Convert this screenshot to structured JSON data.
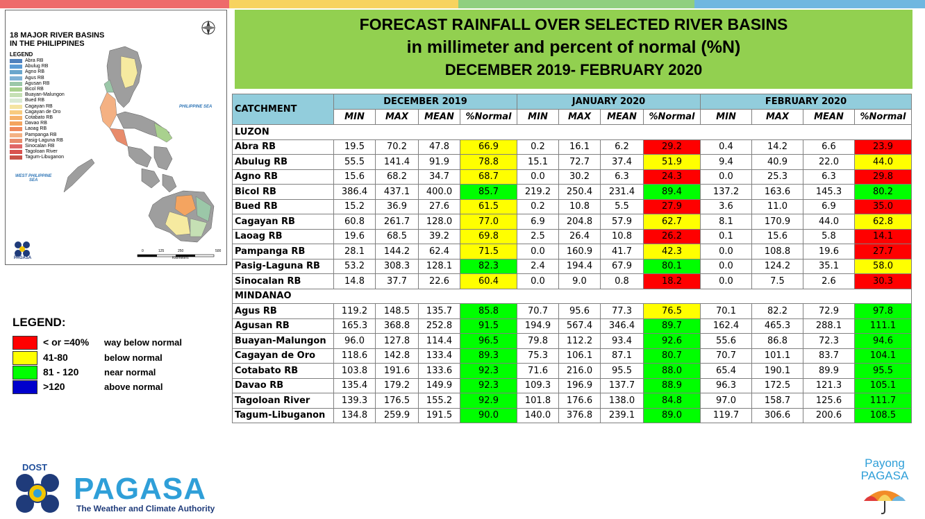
{
  "colors": {
    "red": "#ff0000",
    "yellow": "#ffff00",
    "green": "#00ff00",
    "blue": "#0000cc",
    "header": "#92cddc",
    "banner": "#92d050"
  },
  "banner": {
    "line1": "FORECAST RAINFALL OVER SELECTED RIVER BASINS",
    "line2": "in millimeter  and percent of normal (%N)",
    "line3": "DECEMBER 2019- FEBRUARY 2020"
  },
  "map": {
    "title_line1": "18 MAJOR RIVER BASINS",
    "title_line2": "IN THE PHILIPPINES",
    "legend_title": "LEGEND",
    "basins": [
      {
        "name": "Abra RB",
        "color": "#4f81bd"
      },
      {
        "name": "Abulug RB",
        "color": "#5b9bd5"
      },
      {
        "name": "Agno RB",
        "color": "#6aa6cc"
      },
      {
        "name": "Agus RB",
        "color": "#7fb2d6"
      },
      {
        "name": "Agusan RB",
        "color": "#9bc7a8"
      },
      {
        "name": "Bicol RB",
        "color": "#a9d18e"
      },
      {
        "name": "Buayan-Malungon",
        "color": "#c5e0b4"
      },
      {
        "name": "Bued RB",
        "color": "#d9ead3"
      },
      {
        "name": "Cagayan RB",
        "color": "#f4e4a1"
      },
      {
        "name": "Cagayan de Oro",
        "color": "#f8cb7f"
      },
      {
        "name": "Cotabato RB",
        "color": "#f6b26b"
      },
      {
        "name": "Davao RB",
        "color": "#f4a460"
      },
      {
        "name": "Laoag RB",
        "color": "#f08a5d"
      },
      {
        "name": "Pampanga RB",
        "color": "#f4b183"
      },
      {
        "name": "Pasig-Laguna RB",
        "color": "#e88b6b"
      },
      {
        "name": "Sinocalan RB",
        "color": "#e06666"
      },
      {
        "name": "Tagoloan River",
        "color": "#d9534f"
      },
      {
        "name": "Tagum-Libuganon",
        "color": "#c9544a"
      }
    ],
    "sea_east": "PHILIPPINE SEA",
    "sea_west_1": "WEST PHILIPPINE",
    "sea_west_2": "SEA",
    "scale_labels": [
      "0",
      "125",
      "250",
      "500"
    ],
    "scale_unit": "Kilometers",
    "logo_text": "PAGASA"
  },
  "table": {
    "catchment_label": "CATCHMENT",
    "months": [
      "DECEMBER 2019",
      "JANUARY 2020",
      "FEBRUARY 2020"
    ],
    "subheaders": [
      "MIN",
      "MAX",
      "MEAN",
      "%Normal"
    ],
    "regions": [
      {
        "name": "LUZON",
        "rows": [
          {
            "name": "Abra RB",
            "vals": [
              "19.5",
              "70.2",
              "47.8",
              "66.9",
              "0.2",
              "16.1",
              "6.2",
              "29.2",
              "0.4",
              "14.2",
              "6.6",
              "23.9"
            ],
            "cls": [
              "yellow",
              "red",
              "red"
            ]
          },
          {
            "name": "Abulug RB",
            "vals": [
              "55.5",
              "141.4",
              "91.9",
              "78.8",
              "15.1",
              "72.7",
              "37.4",
              "51.9",
              "9.4",
              "40.9",
              "22.0",
              "44.0"
            ],
            "cls": [
              "yellow",
              "yellow",
              "yellow"
            ]
          },
          {
            "name": "Agno RB",
            "vals": [
              "15.6",
              "68.2",
              "34.7",
              "68.7",
              "0.0",
              "30.2",
              "6.3",
              "24.3",
              "0.0",
              "25.3",
              "6.3",
              "29.8"
            ],
            "cls": [
              "yellow",
              "red",
              "red"
            ]
          },
          {
            "name": "Bicol RB",
            "vals": [
              "386.4",
              "437.1",
              "400.0",
              "85.7",
              "219.2",
              "250.4",
              "231.4",
              "89.4",
              "137.2",
              "163.6",
              "145.3",
              "80.2"
            ],
            "cls": [
              "green",
              "green",
              "green"
            ]
          },
          {
            "name": "Bued RB",
            "vals": [
              "15.2",
              "36.9",
              "27.6",
              "61.5",
              "0.2",
              "10.8",
              "5.5",
              "27.9",
              "3.6",
              "11.0",
              "6.9",
              "35.0"
            ],
            "cls": [
              "yellow",
              "red",
              "red"
            ]
          },
          {
            "name": "Cagayan RB",
            "vals": [
              "60.8",
              "261.7",
              "128.0",
              "77.0",
              "6.9",
              "204.8",
              "57.9",
              "62.7",
              "8.1",
              "170.9",
              "44.0",
              "62.8"
            ],
            "cls": [
              "yellow",
              "yellow",
              "yellow"
            ]
          },
          {
            "name": "Laoag RB",
            "vals": [
              "19.6",
              "68.5",
              "39.2",
              "69.8",
              "2.5",
              "26.4",
              "10.8",
              "26.2",
              "0.1",
              "15.6",
              "5.8",
              "14.1"
            ],
            "cls": [
              "yellow",
              "red",
              "red"
            ]
          },
          {
            "name": "Pampanga RB",
            "vals": [
              "28.1",
              "144.2",
              "62.4",
              "71.5",
              "0.0",
              "160.9",
              "41.7",
              "42.3",
              "0.0",
              "108.8",
              "19.6",
              "27.7"
            ],
            "cls": [
              "yellow",
              "yellow",
              "red"
            ]
          },
          {
            "name": "Pasig-Laguna RB",
            "vals": [
              "53.2",
              "308.3",
              "128.1",
              "82.3",
              "2.4",
              "194.4",
              "67.9",
              "80.1",
              "0.0",
              "124.2",
              "35.1",
              "58.0"
            ],
            "cls": [
              "green",
              "green",
              "yellow"
            ]
          },
          {
            "name": "Sinocalan RB",
            "vals": [
              "14.8",
              "37.7",
              "22.6",
              "60.4",
              "0.0",
              "9.0",
              "0.8",
              "18.2",
              "0.0",
              "7.5",
              "2.6",
              "30.3"
            ],
            "cls": [
              "yellow",
              "red",
              "red"
            ]
          }
        ]
      },
      {
        "name": "MINDANAO",
        "rows": [
          {
            "name": "Agus RB",
            "vals": [
              "119.2",
              "148.5",
              "135.7",
              "85.8",
              "70.7",
              "95.6",
              "77.3",
              "76.5",
              "70.1",
              "82.2",
              "72.9",
              "97.8"
            ],
            "cls": [
              "green",
              "yellow",
              "green"
            ]
          },
          {
            "name": "Agusan RB",
            "vals": [
              "165.3",
              "368.8",
              "252.8",
              "91.5",
              "194.9",
              "567.4",
              "346.4",
              "89.7",
              "162.4",
              "465.3",
              "288.1",
              "111.1"
            ],
            "cls": [
              "green",
              "green",
              "green"
            ]
          },
          {
            "name": "Buayan-Malungon",
            "vals": [
              "96.0",
              "127.8",
              "114.4",
              "96.5",
              "79.8",
              "112.2",
              "93.4",
              "92.6",
              "55.6",
              "86.8",
              "72.3",
              "94.6"
            ],
            "cls": [
              "green",
              "green",
              "green"
            ]
          },
          {
            "name": "Cagayan de Oro",
            "vals": [
              "118.6",
              "142.8",
              "133.4",
              "89.3",
              "75.3",
              "106.1",
              "87.1",
              "80.7",
              "70.7",
              "101.1",
              "83.7",
              "104.1"
            ],
            "cls": [
              "green",
              "green",
              "green"
            ]
          },
          {
            "name": "Cotabato RB",
            "vals": [
              "103.8",
              "191.6",
              "133.6",
              "92.3",
              "71.6",
              "216.0",
              "95.5",
              "88.0",
              "65.4",
              "190.1",
              "89.9",
              "95.5"
            ],
            "cls": [
              "green",
              "green",
              "green"
            ]
          },
          {
            "name": "Davao RB",
            "vals": [
              "135.4",
              "179.2",
              "149.9",
              "92.3",
              "109.3",
              "196.9",
              "137.7",
              "88.9",
              "96.3",
              "172.5",
              "121.3",
              "105.1"
            ],
            "cls": [
              "green",
              "green",
              "green"
            ]
          },
          {
            "name": "Tagoloan River",
            "vals": [
              "139.3",
              "176.5",
              "155.2",
              "92.9",
              "101.8",
              "176.6",
              "138.0",
              "84.8",
              "97.0",
              "158.7",
              "125.6",
              "111.7"
            ],
            "cls": [
              "green",
              "green",
              "green"
            ]
          },
          {
            "name": "Tagum-Libuganon",
            "vals": [
              "134.8",
              "259.9",
              "191.5",
              "90.0",
              "140.0",
              "376.8",
              "239.1",
              "89.0",
              "119.7",
              "306.6",
              "200.6",
              "108.5"
            ],
            "cls": [
              "green",
              "green",
              "green"
            ]
          }
        ]
      }
    ]
  },
  "legend": {
    "title": "LEGEND:",
    "items": [
      {
        "range": "< or =40%",
        "desc": "way below normal",
        "color": "red"
      },
      {
        "range": "41-80",
        "desc": "below normal",
        "color": "yellow"
      },
      {
        "range": "81 - 120",
        "desc": "near normal",
        "color": "green"
      },
      {
        "range": ">120",
        "desc": "above normal",
        "color": "blue"
      }
    ]
  },
  "footer": {
    "dost": "DOST",
    "pagasa": "PAGASA",
    "tagline": "The Weather and Climate Authority",
    "payong1": "Payong",
    "payong2": "PAGASA"
  }
}
